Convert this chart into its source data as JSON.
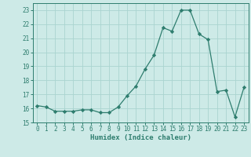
{
  "x": [
    0,
    1,
    2,
    3,
    4,
    5,
    6,
    7,
    8,
    9,
    10,
    11,
    12,
    13,
    14,
    15,
    16,
    17,
    18,
    19,
    20,
    21,
    22,
    23
  ],
  "y": [
    16.2,
    16.1,
    15.8,
    15.8,
    15.8,
    15.9,
    15.9,
    15.7,
    15.7,
    16.1,
    16.9,
    17.6,
    18.8,
    19.8,
    21.75,
    21.5,
    23.0,
    23.0,
    21.3,
    20.9,
    17.2,
    17.3,
    15.4,
    17.5
  ],
  "line_color": "#2e7d6e",
  "marker": "D",
  "marker_size": 2.2,
  "bg_color": "#cdeae7",
  "grid_color": "#aad4d0",
  "xlabel": "Humidex (Indice chaleur)",
  "ylim": [
    15,
    23.5
  ],
  "yticks": [
    15,
    16,
    17,
    18,
    19,
    20,
    21,
    22,
    23
  ],
  "xticks": [
    0,
    1,
    2,
    3,
    4,
    5,
    6,
    7,
    8,
    9,
    10,
    11,
    12,
    13,
    14,
    15,
    16,
    17,
    18,
    19,
    20,
    21,
    22,
    23
  ],
  "font_color": "#2e7d6e",
  "tick_fontsize": 5.5,
  "xlabel_fontsize": 6.5
}
